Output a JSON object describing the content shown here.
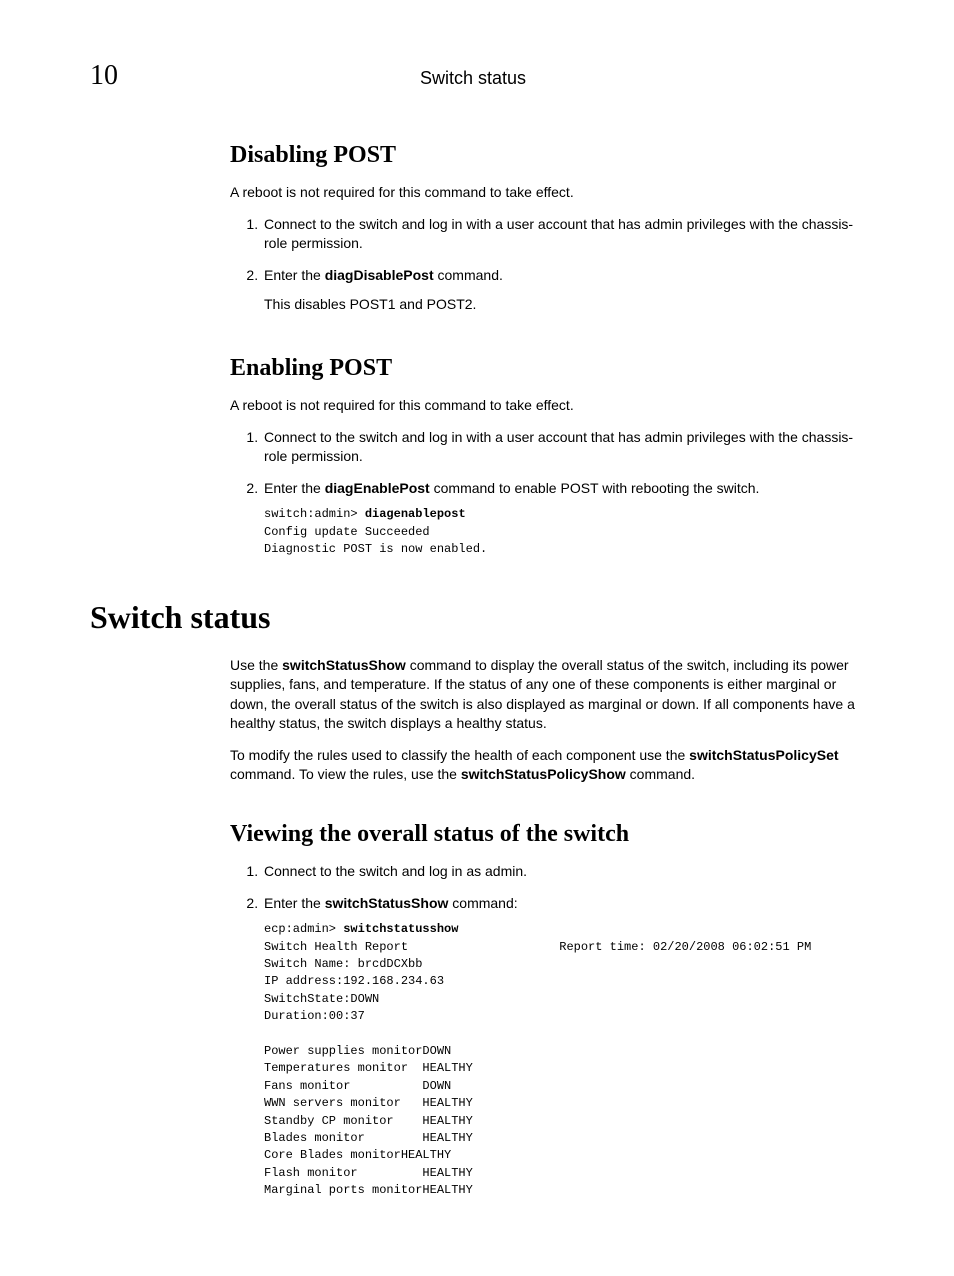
{
  "header": {
    "page_number": "10",
    "running_title": "Switch status"
  },
  "sections": {
    "disabling_post": {
      "title": "Disabling POST",
      "intro": "A reboot is not required for this command to take effect.",
      "step1_a": "Connect to the switch and log in with a user account that has admin privileges with the chassis-role permission.",
      "step2_a": "Enter the ",
      "step2_cmd": "diagDisablePost",
      "step2_b": " command.",
      "step2_sub": "This disables POST1 and POST2."
    },
    "enabling_post": {
      "title": "Enabling POST",
      "intro": "A reboot is not required for this command to take effect.",
      "step1_a": "Connect to the switch and log in with a user account that has admin privileges with the chassis-role permission.",
      "step2_a": "Enter the ",
      "step2_cmd": "diagEnablePost",
      "step2_b": " command to enable POST with rebooting the switch.",
      "code_prompt": "switch:admin> ",
      "code_cmd": "diagenablepost",
      "code_out": "Config update Succeeded\nDiagnostic POST is now enabled."
    },
    "switch_status": {
      "title": "Switch status",
      "para1_a": "Use the ",
      "para1_cmd1": "switchStatusShow",
      "para1_b": " command to display the overall status of the switch, including its power supplies, fans, and temperature. If the status of any one of these components is either marginal or down, the overall status of the switch is also displayed as marginal or down. If all components have a healthy status, the switch displays a healthy status.",
      "para2_a": "To modify the rules used to classify the health of each component use the ",
      "para2_cmd1": "switchStatusPolicySet",
      "para2_b": " command. To view the rules, use the ",
      "para2_cmd2": "switchStatusPolicyShow",
      "para2_c": " command."
    },
    "viewing_status": {
      "title": "Viewing the overall status of the switch",
      "step1": "Connect to the switch and log in as admin.",
      "step2_a": "Enter the ",
      "step2_cmd": "switchStatusShow",
      "step2_b": " command:",
      "code_prompt": "ecp:admin> ",
      "code_cmd": "switchstatusshow",
      "code_out": "Switch Health Report                     Report time: 02/20/2008 06:02:51 PM\nSwitch Name: brcdDCXbb\nIP address:192.168.234.63\nSwitchState:DOWN\nDuration:00:37\n\nPower supplies monitorDOWN\nTemperatures monitor  HEALTHY\nFans monitor          DOWN\nWWN servers monitor   HEALTHY\nStandby CP monitor    HEALTHY\nBlades monitor        HEALTHY\nCore Blades monitorHEALTHY\nFlash monitor         HEALTHY\nMarginal ports monitorHEALTHY"
    }
  }
}
